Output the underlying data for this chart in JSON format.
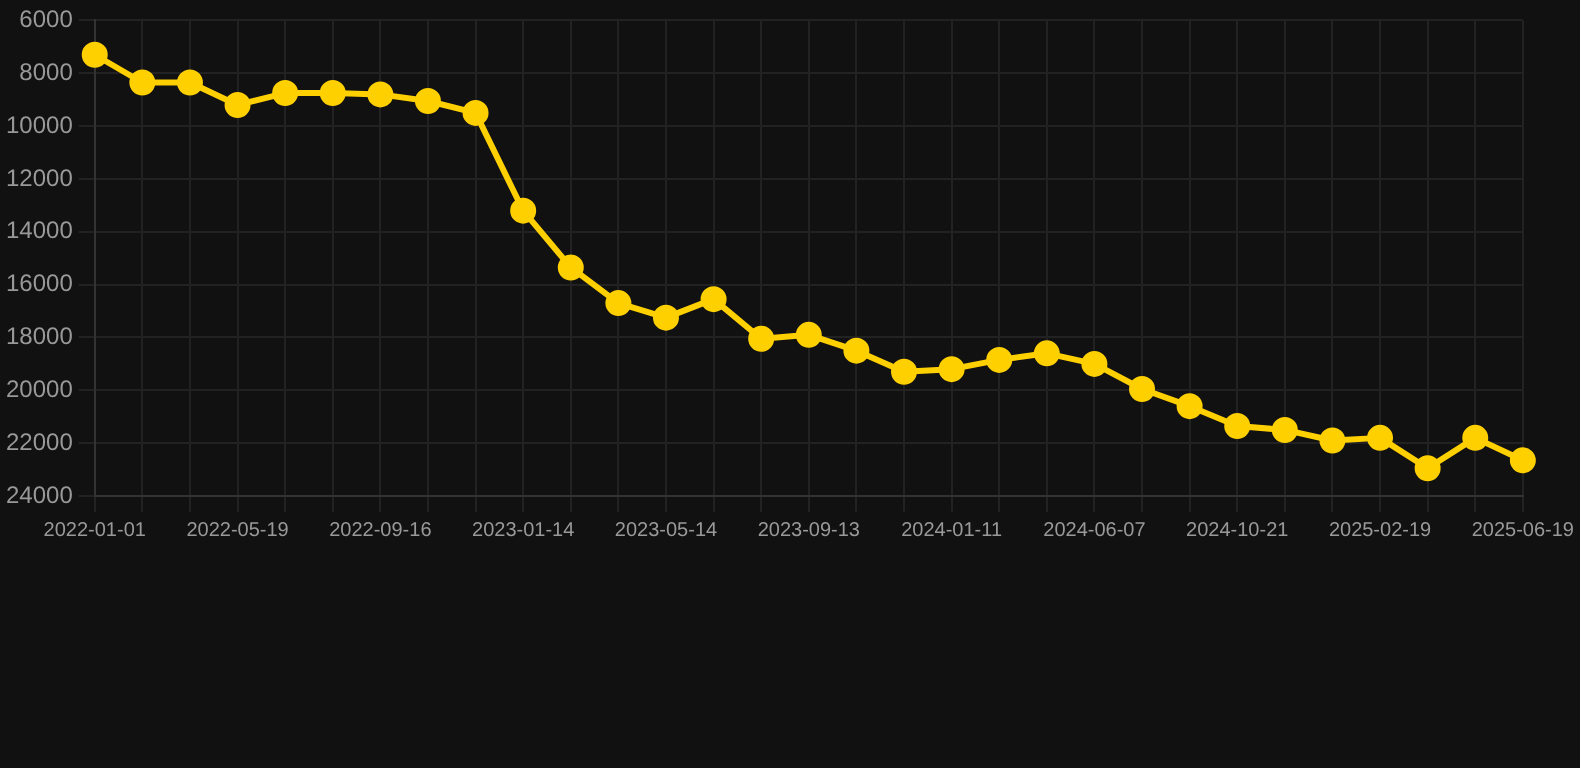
{
  "chart_data": {
    "type": "line",
    "categories": [
      "2022-01-01",
      null,
      null,
      "2022-05-19",
      null,
      null,
      "2022-09-16",
      null,
      null,
      "2023-01-14",
      null,
      null,
      "2023-05-14",
      null,
      null,
      "2023-09-13",
      null,
      null,
      "2024-01-11",
      null,
      null,
      "2024-06-07",
      null,
      null,
      "2024-10-21",
      null,
      null,
      "2025-02-19",
      null,
      null,
      "2025-06-19"
    ],
    "series": [
      {
        "color": "#ffd000",
        "values": [
          7300,
          8350,
          8350,
          9200,
          8750,
          8750,
          8800,
          9050,
          9500,
          13200,
          15350,
          16700,
          17250,
          16550,
          18050,
          17900,
          18500,
          19300,
          19200,
          18850,
          18600,
          19000,
          19950,
          20600,
          21350,
          21500,
          21900,
          21800,
          22950,
          21800,
          22650
        ]
      }
    ],
    "ylim": [
      24000,
      6000
    ],
    "yticks": [
      6000,
      8000,
      10000,
      12000,
      14000,
      16000,
      18000,
      20000,
      22000,
      24000
    ],
    "grid": true,
    "marker": "circle",
    "line_style": "solid"
  }
}
